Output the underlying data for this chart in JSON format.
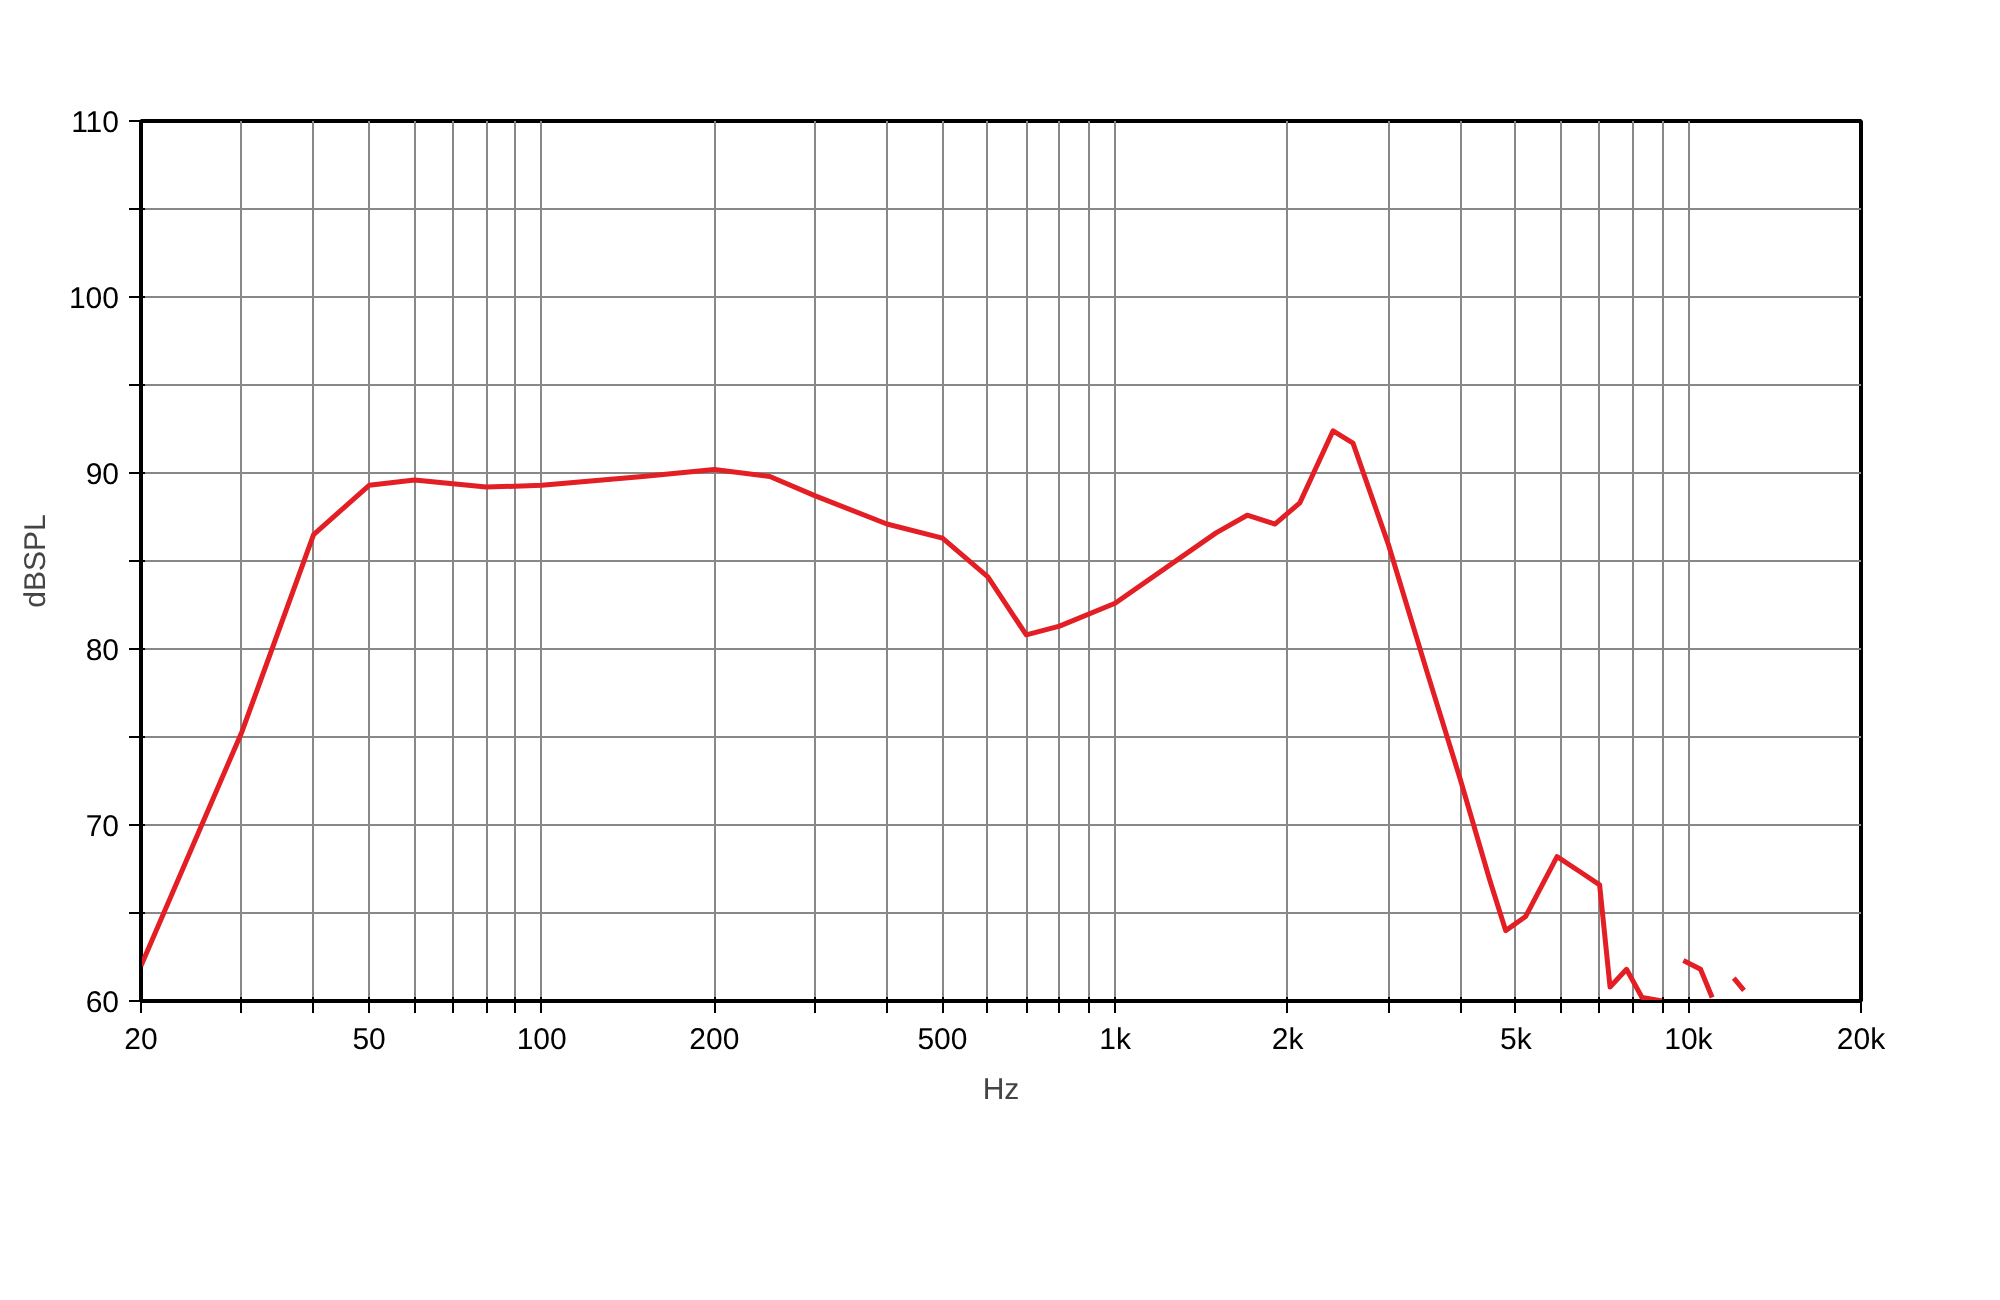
{
  "chart_data": {
    "type": "line",
    "xlabel": "Hz",
    "ylabel": "dBSPL",
    "log": "x",
    "grid": true,
    "line_style": "solid",
    "x": [
      20,
      30,
      40,
      50,
      60,
      80,
      100,
      150,
      200,
      250,
      300,
      400,
      500,
      600,
      700,
      800,
      1000,
      1500,
      1700,
      1900,
      2100,
      2400,
      2600,
      3000,
      3500,
      4000,
      4500,
      4800,
      5200,
      5900,
      6500,
      7000,
      7300,
      7800,
      8300,
      9000,
      9400,
      9800,
      10500,
      11000,
      11500,
      12000,
      12500
    ],
    "series": [
      {
        "color": "#e31e24",
        "values": [
          62.0,
          75.3,
          86.5,
          89.3,
          89.6,
          89.2,
          89.3,
          89.8,
          90.2,
          89.8,
          88.7,
          87.1,
          86.3,
          84.1,
          80.8,
          81.3,
          82.6,
          86.6,
          87.6,
          87.1,
          88.3,
          92.4,
          91.7,
          85.9,
          78.7,
          72.6,
          66.9,
          64.0,
          64.8,
          68.2,
          67.3,
          66.6,
          60.8,
          61.8,
          60.2,
          60.0,
          null,
          62.3,
          61.8,
          60.2,
          null,
          61.3,
          60.6
        ]
      }
    ],
    "xlim": [
      20,
      20000
    ],
    "xticks": [
      20,
      {
        "value": 30,
        "label": null
      },
      {
        "value": 40,
        "label": null
      },
      50,
      {
        "value": 60,
        "label": null
      },
      {
        "value": 70,
        "label": null
      },
      {
        "value": 80,
        "label": null
      },
      {
        "value": 90,
        "label": null
      },
      100,
      200,
      {
        "value": 300,
        "label": null
      },
      {
        "value": 400,
        "label": null
      },
      500,
      {
        "value": 600,
        "label": null
      },
      {
        "value": 700,
        "label": null
      },
      {
        "value": 800,
        "label": null
      },
      {
        "value": 900,
        "label": null
      },
      {
        "value": 1000,
        "label": "1k"
      },
      {
        "value": 2000,
        "label": "2k"
      },
      {
        "value": 3000,
        "label": null
      },
      {
        "value": 4000,
        "label": null
      },
      {
        "value": 5000,
        "label": "5k"
      },
      {
        "value": 6000,
        "label": null
      },
      {
        "value": 7000,
        "label": null
      },
      {
        "value": 8000,
        "label": null
      },
      {
        "value": 9000,
        "label": null
      },
      {
        "value": 10000,
        "label": "10k"
      },
      {
        "value": 20000,
        "label": "20k"
      }
    ],
    "ylim": [
      60,
      110
    ],
    "yticks": [
      60,
      {
        "value": 65,
        "label": null
      },
      70,
      {
        "value": 75,
        "label": null
      },
      80,
      {
        "value": 85,
        "label": null
      },
      90,
      {
        "value": 95,
        "label": null
      },
      100,
      {
        "value": 105,
        "label": null
      },
      110
    ]
  }
}
